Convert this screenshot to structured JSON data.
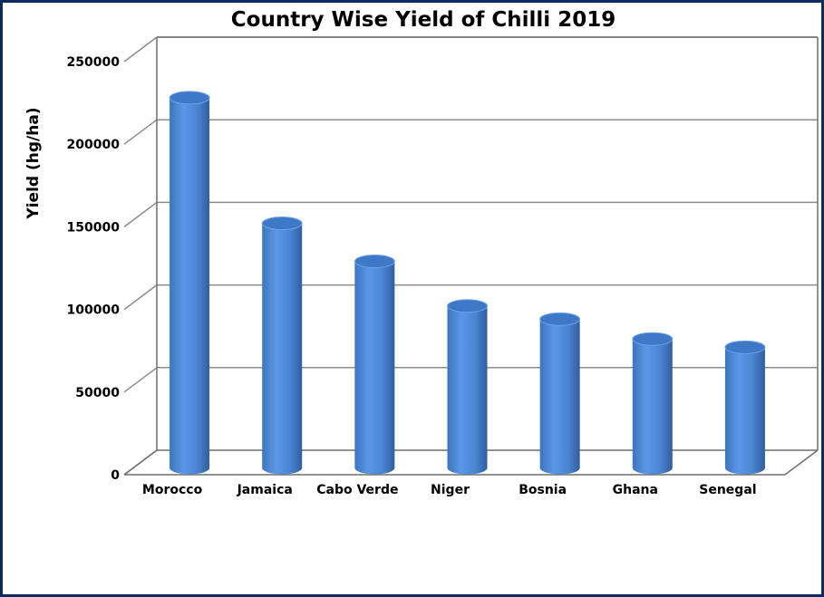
{
  "chart_data": {
    "type": "bar",
    "title": "Country Wise Yield of Chilli 2019",
    "ylabel": "Yield (hg/ha)",
    "xlabel": "",
    "categories": [
      "Morocco",
      "Jamaica",
      "Cabo Verde",
      "Niger",
      "Bosnia",
      "Ghana",
      "Senegal"
    ],
    "values": [
      224000,
      148000,
      125000,
      98000,
      90000,
      78000,
      73000
    ],
    "ylim": [
      0,
      250000
    ],
    "yticks": [
      0,
      50000,
      100000,
      150000,
      200000,
      250000
    ],
    "grid": true,
    "legend": "none",
    "bar_color": "#4a86d4",
    "bar_style": "3d-cylinder"
  }
}
